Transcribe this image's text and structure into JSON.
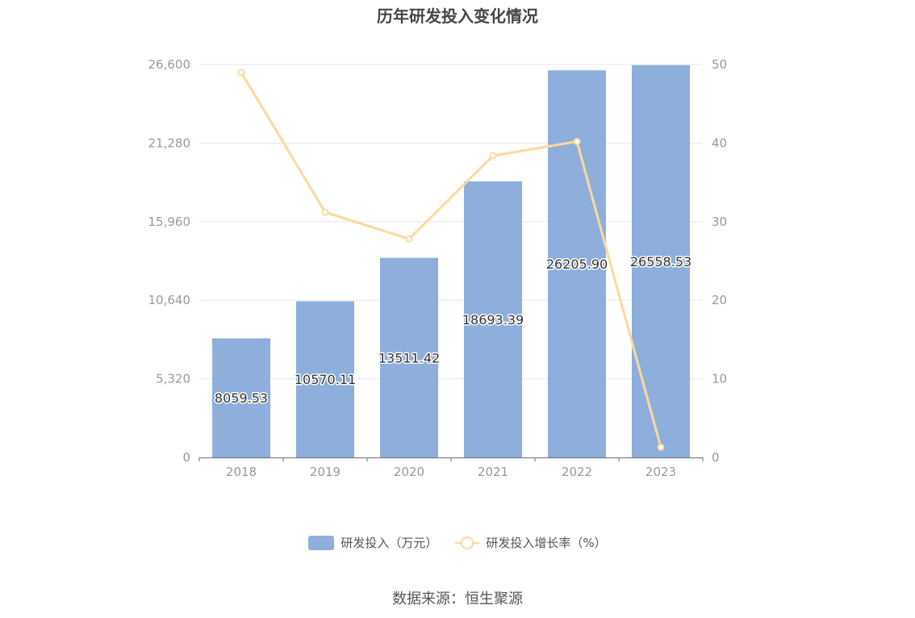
{
  "chart_data": {
    "type": "bar",
    "title": "历年研发投入变化情况",
    "categories": [
      "2018",
      "2019",
      "2020",
      "2021",
      "2022",
      "2023"
    ],
    "series": [
      {
        "name": "研发投入（万元）",
        "type": "bar",
        "axis": "left",
        "values": [
          8059.53,
          10570.11,
          13511.42,
          18693.39,
          26205.9,
          26558.53
        ],
        "labels": [
          "8059.53",
          "10570.11",
          "13511.42",
          "18693.39",
          "26205.90",
          "26558.53"
        ],
        "color": "#8eaedb"
      },
      {
        "name": "研发投入增长率（%）",
        "type": "line",
        "axis": "right",
        "values": [
          49.0,
          31.2,
          27.8,
          38.4,
          40.2,
          1.3
        ],
        "color": "#fcd99c"
      }
    ],
    "left_axis": {
      "ylim": [
        0,
        26600
      ],
      "ticks": [
        "0",
        "5,320",
        "10,640",
        "15,960",
        "21,280",
        "26,600"
      ]
    },
    "right_axis": {
      "ylim": [
        0,
        50
      ],
      "ticks": [
        "0",
        "10",
        "20",
        "30",
        "40",
        "50"
      ]
    },
    "grid": true,
    "legend_position": "bottom-center"
  },
  "legend": {
    "bar_label": "研发投入（万元）",
    "line_label": "研发投入增长率（%）"
  },
  "source": "数据来源：恒生聚源"
}
